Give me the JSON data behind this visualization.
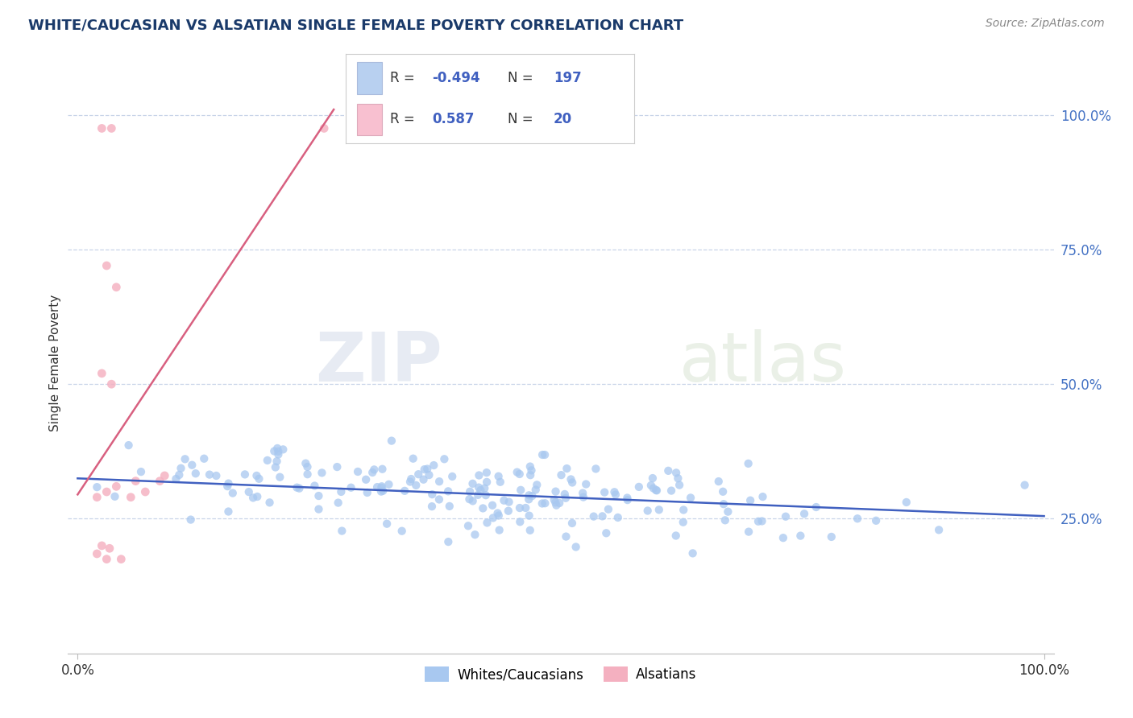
{
  "title": "WHITE/CAUCASIAN VS ALSATIAN SINGLE FEMALE POVERTY CORRELATION CHART",
  "source": "Source: ZipAtlas.com",
  "ylabel": "Single Female Poverty",
  "watermark_zip": "ZIP",
  "watermark_atlas": "atlas",
  "blue_R": -0.494,
  "blue_N": 197,
  "pink_R": 0.587,
  "pink_N": 20,
  "blue_color": "#a8c8f0",
  "pink_color": "#f4b0c0",
  "blue_line_color": "#4060c0",
  "pink_line_color": "#d86080",
  "title_color": "#1a3a6a",
  "source_color": "#888888",
  "value_color": "#4060c0",
  "right_ytick_color": "#4472c4",
  "grid_color": "#c8d4e8",
  "background_color": "#ffffff",
  "legend_box_blue_fill": "#b8d0f0",
  "legend_box_pink_fill": "#f8c0d0",
  "legend_border_color": "#c0c8d8",
  "ymin": 0.0,
  "ymax": 1.08,
  "xmin": -0.01,
  "xmax": 1.01
}
